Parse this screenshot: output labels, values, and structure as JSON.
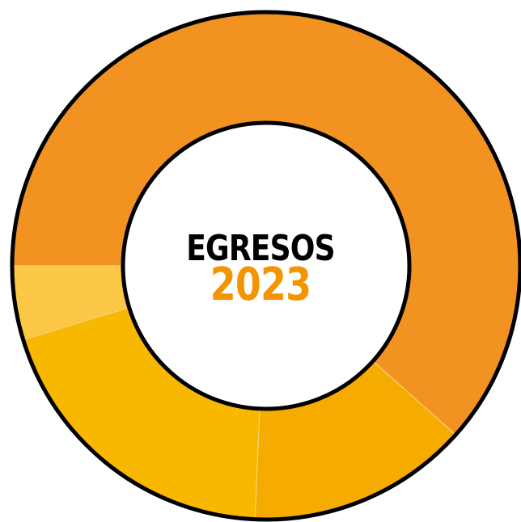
{
  "chart_data": {
    "type": "pie",
    "variant": "donut",
    "title": "EGRESOS",
    "subtitle": "2023",
    "values": [
      61.6,
      14.1,
      19.6,
      4.7
    ],
    "colors": [
      "#f29221",
      "#f6ab00",
      "#f9b800",
      "#fcc646"
    ],
    "legend": "none",
    "data_labels": "none"
  },
  "colors": {
    "title": "#000000",
    "subtitle": "#f29500",
    "border": "#000000",
    "separator": "#f6d27a"
  }
}
